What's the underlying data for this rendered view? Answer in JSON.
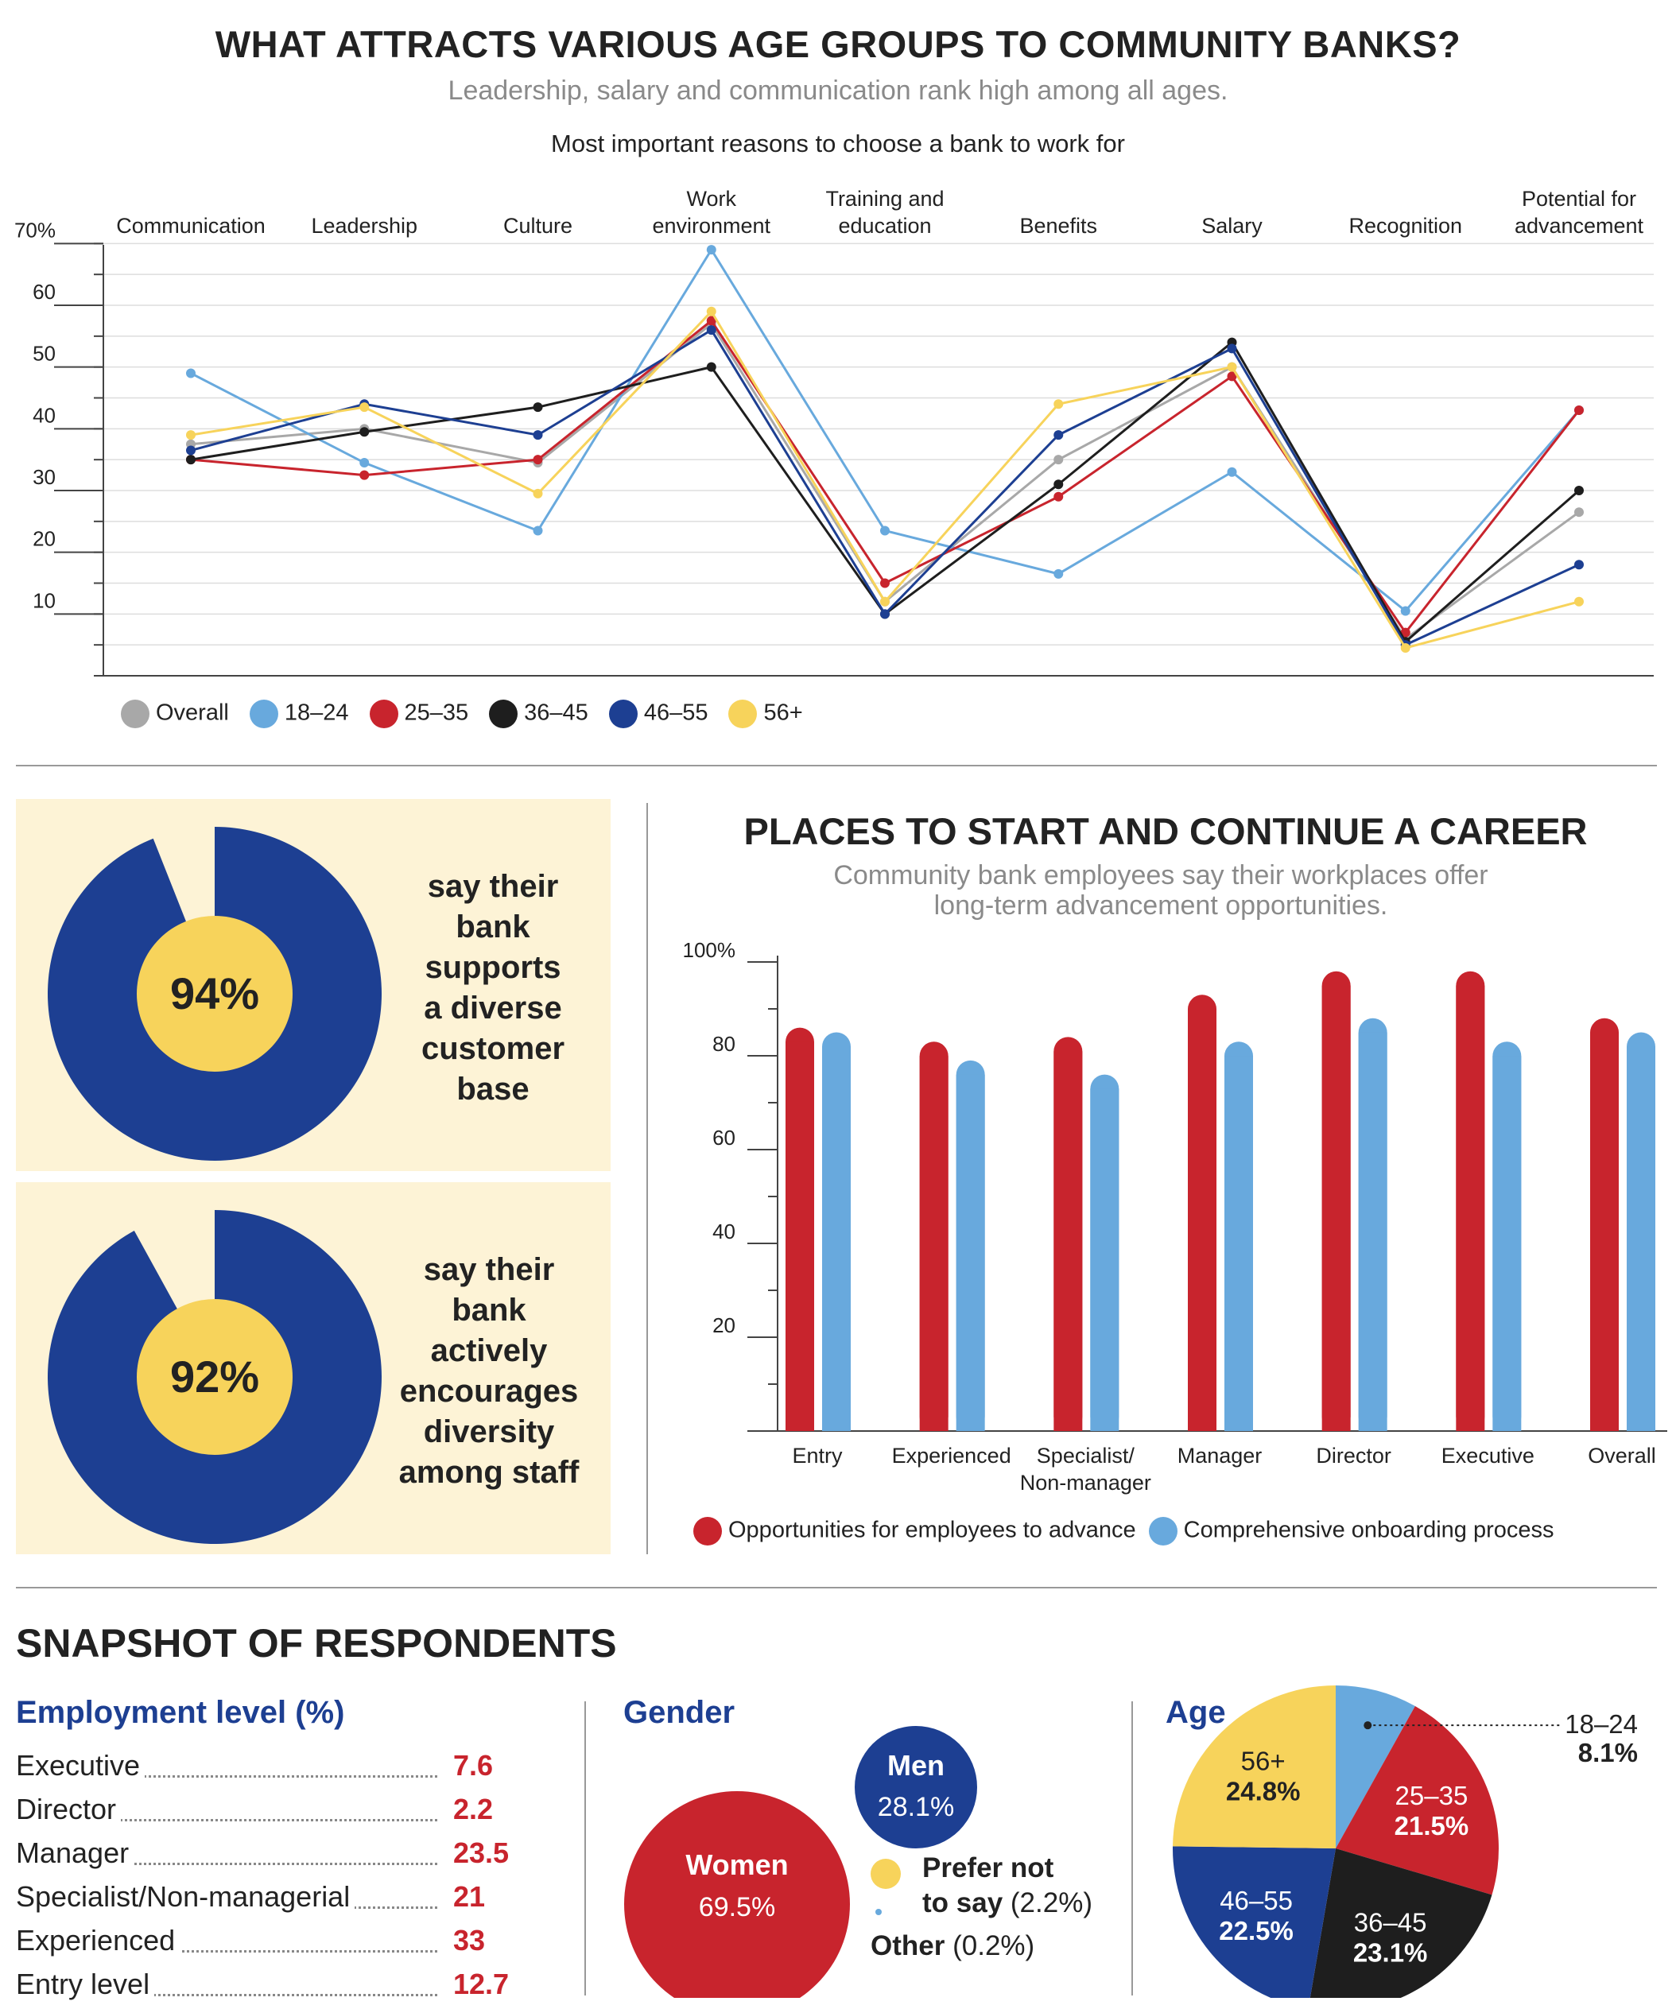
{
  "header": {
    "title": "WHAT ATTRACTS VARIOUS AGE GROUPS TO COMMUNITY BANKS?",
    "subtitle": "Leadership, salary and communication rank high among all ages.",
    "chart_title": "Most important reasons to choose a bank to work for"
  },
  "line_legend": [
    {
      "name": "Overall",
      "color": "#a8a8a8"
    },
    {
      "name": "18–24",
      "color": "#68a9dd"
    },
    {
      "name": "25–35",
      "color": "#c8242d"
    },
    {
      "name": "36–45",
      "color": "#1e1e1e"
    },
    {
      "name": "46–55",
      "color": "#1d3f92"
    },
    {
      "name": "56+",
      "color": "#f7d35b"
    }
  ],
  "stats": [
    {
      "value": "94%",
      "percent": 94,
      "text": [
        "say their",
        "bank",
        "supports",
        "a diverse",
        "customer",
        "base"
      ]
    },
    {
      "value": "92%",
      "percent": 92,
      "text": [
        "say their",
        "bank",
        "actively",
        "encourages",
        "diversity",
        "among staff"
      ]
    }
  ],
  "career": {
    "title": "PLACES TO START AND CONTINUE A CAREER",
    "subtitle_lines": [
      "Community bank employees say their workplaces offer",
      "long-term advancement opportunities."
    ]
  },
  "snapshot": {
    "title": "SNAPSHOT OF RESPONDENTS",
    "employment": {
      "heading": "Employment level (%)",
      "rows": [
        {
          "label": "Executive",
          "value": "7.6"
        },
        {
          "label": "Director",
          "value": "2.2"
        },
        {
          "label": "Manager",
          "value": "23.5"
        },
        {
          "label": "Specialist/Non-managerial",
          "value": "21"
        },
        {
          "label": "Experienced",
          "value": "33"
        },
        {
          "label": "Entry level",
          "value": "12.7"
        }
      ]
    },
    "gender": {
      "heading": "Gender",
      "women_label": "Women",
      "women_value": "69.5%",
      "men_label": "Men",
      "men_value": "28.1%",
      "prefer_label_1": "Prefer not",
      "prefer_label_2": "to say",
      "prefer_value": "(2.2%)",
      "other_label": "Other",
      "other_value": "(0.2%)"
    },
    "age": {
      "heading": "Age"
    }
  },
  "colors": {
    "red": "#c8242d",
    "lightblue": "#68a9dd",
    "navy": "#1d3f92",
    "yellow": "#f7d35b",
    "black": "#1e1e1e",
    "gray": "#a8a8a8",
    "cream": "#fdf3d6"
  },
  "chart_data": [
    {
      "type": "line",
      "title": "Most important reasons to choose a bank to work for",
      "categories": [
        [
          "Communication"
        ],
        [
          "Leadership"
        ],
        [
          "Culture"
        ],
        [
          "Work",
          "environment"
        ],
        [
          "Training and",
          "education"
        ],
        [
          "Benefits"
        ],
        [
          "Salary"
        ],
        [
          "Recognition"
        ],
        [
          "Potential for",
          "advancement"
        ]
      ],
      "ylim": [
        0,
        70
      ],
      "yticks": [
        10,
        20,
        30,
        40,
        50,
        60,
        70
      ],
      "ytick_labels": [
        "10",
        "20",
        "30",
        "40",
        "50",
        "60",
        "70%"
      ],
      "series": [
        {
          "name": "Overall",
          "color": "#a8a8a8",
          "values": [
            37.5,
            40,
            34.5,
            57,
            12,
            35,
            50,
            6,
            26.5
          ]
        },
        {
          "name": "18–24",
          "color": "#68a9dd",
          "values": [
            49,
            34.5,
            23.5,
            69,
            23.5,
            16.5,
            33,
            10.5,
            43
          ]
        },
        {
          "name": "25–35",
          "color": "#c8242d",
          "values": [
            35,
            32.5,
            35,
            57.5,
            15,
            29,
            48.5,
            7,
            43
          ]
        },
        {
          "name": "36–45",
          "color": "#1e1e1e",
          "values": [
            35,
            39.5,
            43.5,
            50,
            10,
            31,
            54,
            5.5,
            30
          ]
        },
        {
          "name": "46–55",
          "color": "#1d3f92",
          "values": [
            36.5,
            44,
            39,
            56,
            10,
            39,
            53,
            5,
            18
          ]
        },
        {
          "name": "56+",
          "color": "#f7d35b",
          "values": [
            39,
            43.5,
            29.5,
            59,
            12,
            44,
            50,
            4.5,
            12
          ]
        }
      ]
    },
    {
      "type": "bar",
      "title": "PLACES TO START AND CONTINUE A CAREER",
      "categories": [
        [
          "Entry"
        ],
        [
          "Experienced"
        ],
        [
          "Specialist/",
          "Non-manager"
        ],
        [
          "Manager"
        ],
        [
          "Director"
        ],
        [
          "Executive"
        ],
        [
          "Overall"
        ]
      ],
      "ylim": [
        0,
        100
      ],
      "yticks": [
        20,
        40,
        60,
        80,
        100
      ],
      "ytick_labels": [
        "20",
        "40",
        "60",
        "80",
        "100%"
      ],
      "series": [
        {
          "name": "Opportunities for employees to advance",
          "color": "#c8242d",
          "values": [
            86,
            83,
            84,
            93,
            98,
            98,
            88
          ]
        },
        {
          "name": "Comprehensive onboarding process",
          "color": "#68a9dd",
          "values": [
            85,
            79,
            76,
            83,
            88,
            83,
            85
          ]
        }
      ]
    },
    {
      "type": "pie",
      "title": "Age",
      "labels": [
        "18–24",
        "25–35",
        "36–45",
        "46–55",
        "56+"
      ],
      "values": [
        8.1,
        21.5,
        23.1,
        22.5,
        24.8
      ],
      "value_labels": [
        "8.1%",
        "21.5%",
        "23.1%",
        "22.5%",
        "24.8%"
      ],
      "colors": [
        "#68a9dd",
        "#c8242d",
        "#1e1e1e",
        "#1d3f92",
        "#f7d35b"
      ]
    }
  ]
}
